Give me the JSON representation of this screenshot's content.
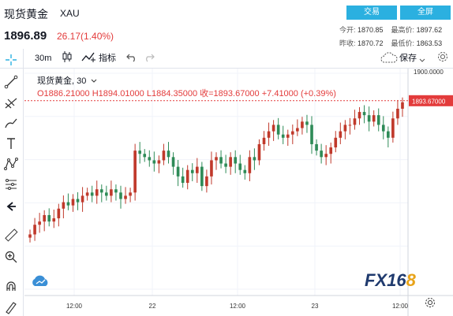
{
  "header": {
    "title": "现货黄金",
    "symbol": "XAU",
    "price": "1896.89",
    "change": "26.17(1.40%)",
    "trade_button": "交易",
    "full_button": "全屏",
    "stats": {
      "open_label": "今开:",
      "open_value": "1870.85",
      "high_label": "最高价:",
      "high_value": "1897.62",
      "prev_label": "昨收:",
      "prev_value": "1870.72",
      "low_label": "最低价:",
      "low_value": "1863.53"
    }
  },
  "toolbar": {
    "interval": "30m",
    "indicators": "指标",
    "save": "保存"
  },
  "legend": {
    "name": "现货黄金",
    "interval": "30",
    "ohlc": "O1886.21000   H1894.01000   L1884.35000   收=1893.67000   +7.41000  (+0.39%)"
  },
  "colors": {
    "up": "#c0392b",
    "down": "#2e8b57",
    "accent": "#2bb0e0",
    "price_tag": "#e33b3b"
  },
  "watermark": {
    "main": "FX16",
    "accent": "8"
  },
  "chart_data": {
    "type": "candlestick",
    "y_axis_labels": [
      "1900.0000"
    ],
    "last_price_label": "1893.67000",
    "x_tick_labels": [
      "12:00",
      "22",
      "12:00",
      "23",
      "12:00"
    ],
    "approx_close_series": [
      1852,
      1855,
      1856,
      1858,
      1856,
      1857,
      1860,
      1862,
      1861,
      1863,
      1862,
      1864,
      1865,
      1864,
      1866,
      1865,
      1864,
      1866,
      1865,
      1863,
      1864,
      1865,
      1878,
      1877,
      1876,
      1875,
      1874,
      1875,
      1878,
      1876,
      1873,
      1870,
      1868,
      1872,
      1871,
      1873,
      1867,
      1870,
      1875,
      1876,
      1874,
      1873,
      1876,
      1874,
      1872,
      1871,
      1876,
      1875,
      1880,
      1882,
      1884,
      1886,
      1883,
      1882,
      1883,
      1884,
      1885,
      1887,
      1886,
      1880,
      1878,
      1876,
      1877,
      1879,
      1882,
      1884,
      1886,
      1886,
      1888,
      1890,
      1889,
      1887,
      1889,
      1886,
      1884,
      1882,
      1888,
      1891,
      1893
    ]
  }
}
